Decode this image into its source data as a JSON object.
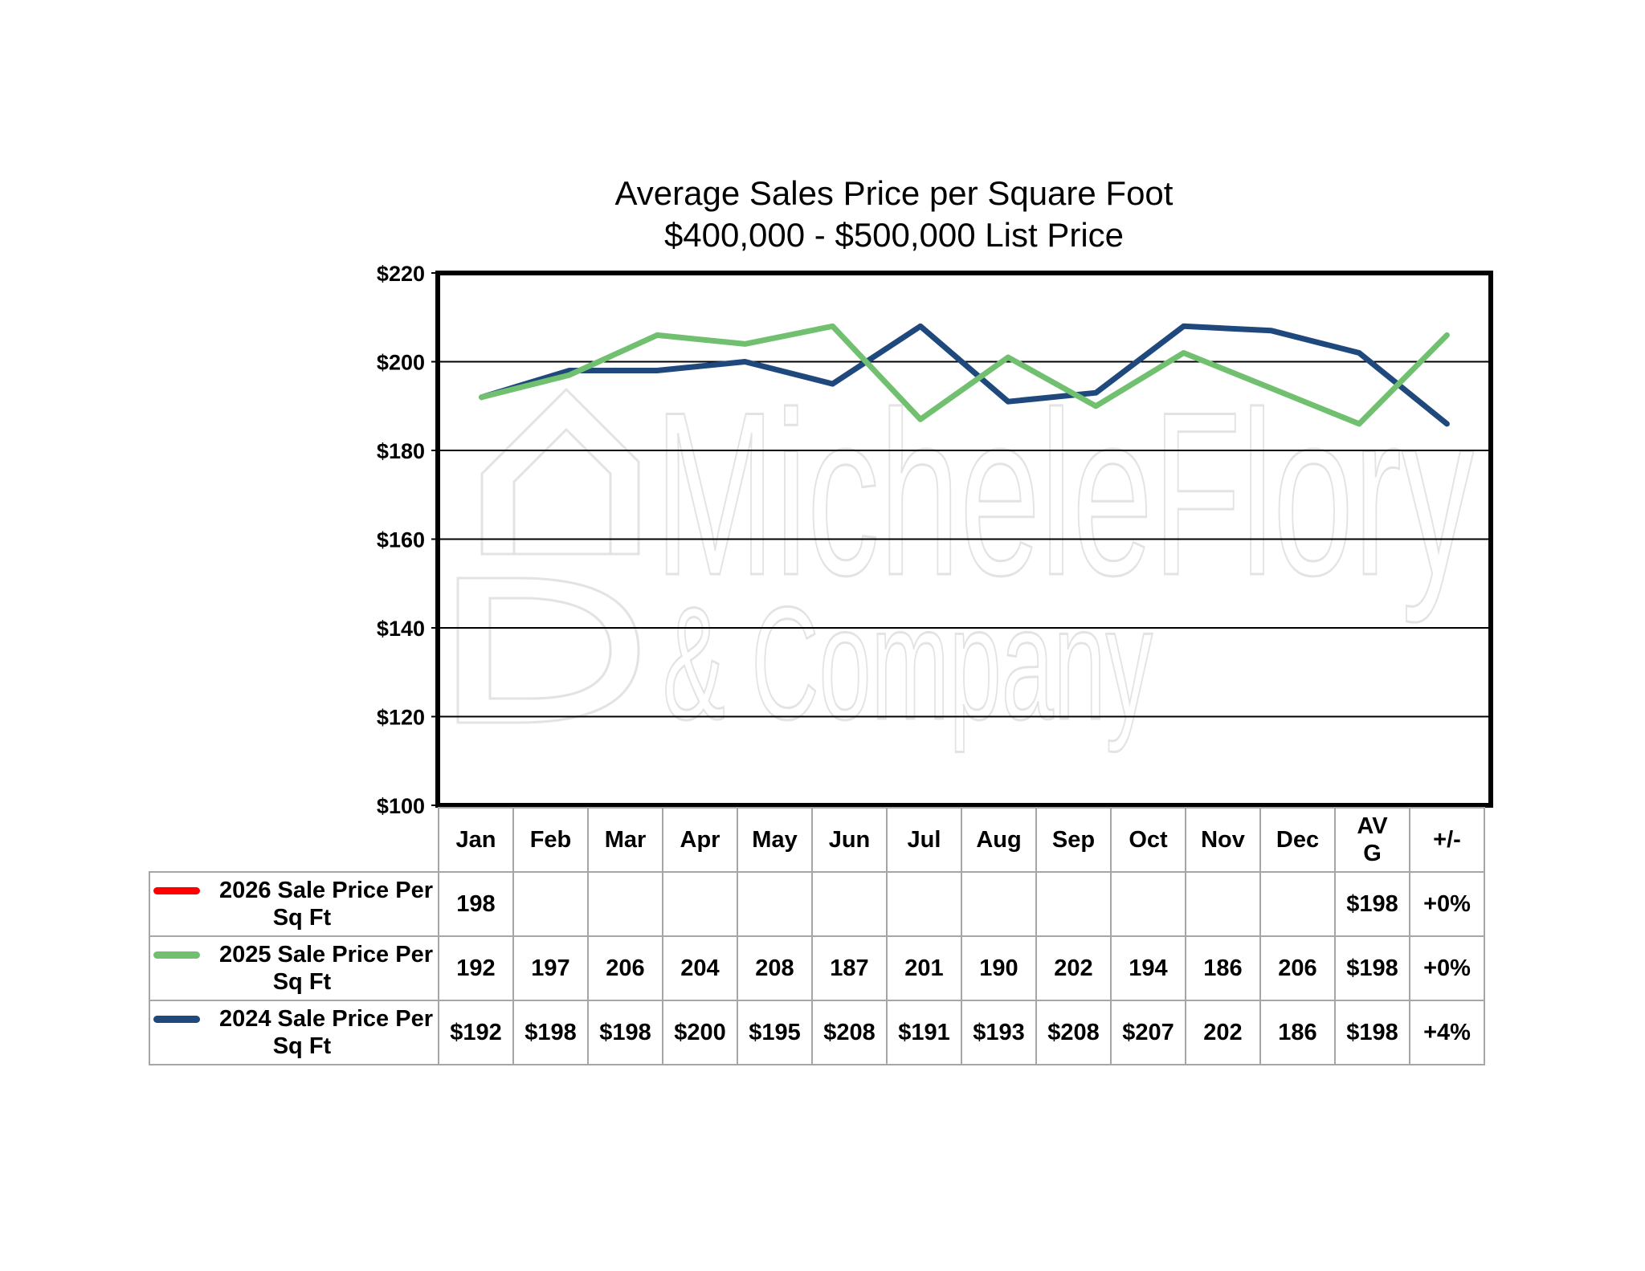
{
  "chart_data": {
    "type": "line",
    "title": "Average Sales Price per Square Foot",
    "subtitle": "$400,000 - $500,000 List Price",
    "categories": [
      "Jan",
      "Feb",
      "Mar",
      "Apr",
      "May",
      "Jun",
      "Jul",
      "Aug",
      "Sep",
      "Oct",
      "Nov",
      "Dec"
    ],
    "ylim": [
      100,
      220
    ],
    "yticks": [
      "$220",
      "$200",
      "$180",
      "$160",
      "$140",
      "$120",
      "$100"
    ],
    "ytick_values": [
      220,
      200,
      180,
      160,
      140,
      120,
      100
    ],
    "grid": true,
    "legend": "table-below",
    "watermark": [
      "MicheleFlory",
      "& Company"
    ],
    "series": [
      {
        "name": "2026 Sale Price Per Sq Ft",
        "color": "#ff0000",
        "values": [
          198,
          null,
          null,
          null,
          null,
          null,
          null,
          null,
          null,
          null,
          null,
          null
        ],
        "cells": [
          "198",
          "",
          "",
          "",
          "",
          "",
          "",
          "",
          "",
          "",
          "",
          ""
        ],
        "avg": "$198",
        "change": "+0%"
      },
      {
        "name": "2025 Sale Price Per Sq Ft",
        "color": "#70c070",
        "values": [
          192,
          197,
          206,
          204,
          208,
          187,
          201,
          190,
          202,
          194,
          186,
          206
        ],
        "cells": [
          "192",
          "197",
          "206",
          "204",
          "208",
          "187",
          "201",
          "190",
          "202",
          "194",
          "186",
          "206"
        ],
        "avg": "$198",
        "change": "+0%"
      },
      {
        "name": "2024 Sale Price Per Sq Ft",
        "color": "#1f497d",
        "values": [
          192,
          198,
          198,
          200,
          195,
          208,
          191,
          193,
          208,
          207,
          202,
          186
        ],
        "cells": [
          "$192",
          "$198",
          "$198",
          "$200",
          "$195",
          "$208",
          "$191",
          "$193",
          "$208",
          "$207",
          "202",
          "186"
        ],
        "avg": "$198",
        "change": "+4%"
      }
    ],
    "table_headers": {
      "avg": "AV\nG",
      "change": "+/-"
    }
  }
}
